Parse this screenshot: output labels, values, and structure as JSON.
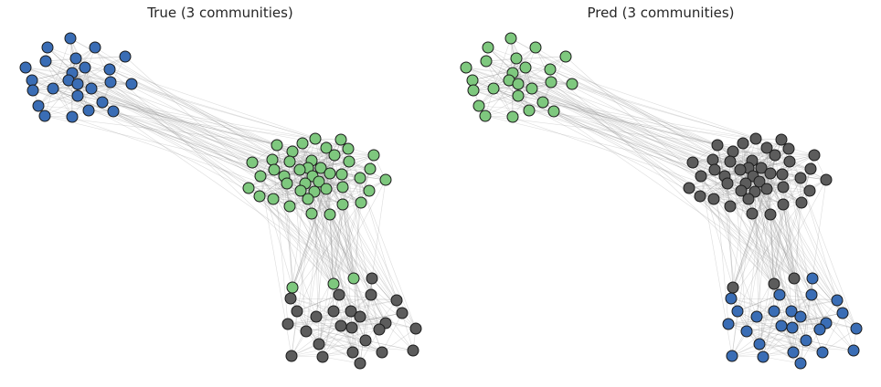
{
  "titles": {
    "left": "True (3 communities)",
    "right": "Pred (3 communities)"
  },
  "colors": {
    "blue": "#3a6db5",
    "green": "#7ec87e",
    "gray": "#5c5c5c",
    "edge": "#9a9a9a",
    "stroke": "#1a1a1a"
  },
  "graph": {
    "nodes_true": [
      "blue",
      "blue",
      "blue",
      "blue",
      "blue",
      "blue",
      "blue",
      "blue",
      "blue",
      "blue",
      "blue",
      "blue",
      "blue",
      "blue",
      "blue",
      "blue",
      "blue",
      "blue",
      "blue",
      "blue",
      "blue",
      "blue",
      "blue",
      "blue",
      "blue",
      "green",
      "green",
      "green",
      "green",
      "green",
      "green",
      "green",
      "green",
      "green",
      "green",
      "green",
      "green",
      "green",
      "green",
      "green",
      "green",
      "green",
      "green",
      "green",
      "green",
      "green",
      "green",
      "green",
      "green",
      "green",
      "green",
      "green",
      "green",
      "green",
      "green",
      "green",
      "green",
      "green",
      "green",
      "green",
      "green",
      "green",
      "green",
      "green",
      "green",
      "green",
      "green",
      "green",
      "green",
      "green",
      "green",
      "gray",
      "gray",
      "gray",
      "gray",
      "gray",
      "gray",
      "gray",
      "gray",
      "gray",
      "gray",
      "gray",
      "gray",
      "gray",
      "gray",
      "gray",
      "gray",
      "gray",
      "gray",
      "gray",
      "gray",
      "gray",
      "gray",
      "gray",
      "gray",
      "gray",
      "gray",
      "gray",
      "gray",
      "gray",
      "gray",
      "gray",
      "gray",
      "gray",
      "gray"
    ],
    "nodes_pred": [
      "green",
      "green",
      "green",
      "green",
      "green",
      "green",
      "green",
      "green",
      "green",
      "green",
      "green",
      "green",
      "green",
      "green",
      "green",
      "green",
      "green",
      "green",
      "green",
      "green",
      "green",
      "green",
      "green",
      "green",
      "green",
      "gray",
      "gray",
      "gray",
      "gray",
      "gray",
      "gray",
      "gray",
      "gray",
      "gray",
      "gray",
      "gray",
      "gray",
      "gray",
      "gray",
      "gray",
      "gray",
      "gray",
      "gray",
      "gray",
      "gray",
      "gray",
      "gray",
      "gray",
      "gray",
      "gray",
      "gray",
      "gray",
      "gray",
      "gray",
      "gray",
      "gray",
      "gray",
      "gray",
      "gray",
      "gray",
      "gray",
      "gray",
      "gray",
      "gray",
      "gray",
      "gray",
      "gray",
      "gray",
      "gray",
      "gray",
      "gray",
      "blue",
      "blue",
      "blue",
      "blue",
      "blue",
      "blue",
      "blue",
      "blue",
      "blue",
      "blue",
      "blue",
      "blue",
      "blue",
      "blue",
      "blue",
      "blue",
      "blue",
      "blue",
      "blue",
      "blue",
      "blue",
      "blue",
      "blue",
      "blue",
      "blue",
      "blue",
      "blue",
      "blue",
      "blue",
      "blue",
      "blue",
      "blue",
      "blue",
      "blue"
    ]
  }
}
